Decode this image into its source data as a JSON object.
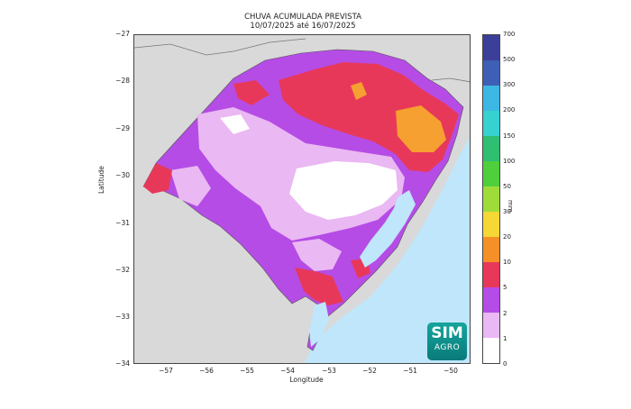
{
  "title": {
    "line1": "CHUVA ACUMULADA PREVISTA",
    "line2": "10/07/2025 até 16/07/2025"
  },
  "axes": {
    "x_label": "Longitude",
    "y_label": "Latitude",
    "x_ticks": [
      "−57",
      "−56",
      "−55",
      "−54",
      "−53",
      "−52",
      "−51",
      "−50"
    ],
    "y_ticks": [
      "−27",
      "−28",
      "−29",
      "−30",
      "−31",
      "−32",
      "−33",
      "−34"
    ]
  },
  "colorbar": {
    "unit": "mm",
    "ticks": [
      "700",
      "500",
      "300",
      "200",
      "150",
      "100",
      "50",
      "30",
      "20",
      "10",
      "5",
      "2",
      "1",
      "0"
    ],
    "colors_top_to_bottom": [
      "#3b3f99",
      "#3f5fb6",
      "#3db7e3",
      "#36d1d1",
      "#2fbf72",
      "#4fcf3c",
      "#9fdc3a",
      "#f5d735",
      "#f58f28",
      "#e8385a",
      "#b44de8",
      "#eab8f2",
      "#ffffff"
    ]
  },
  "map_colors": {
    "background": "#d9d9d9",
    "ocean": "#bfe6fb",
    "lagoon": "#bfe6fb",
    "state_base": "#b54ce6",
    "light": "#eab8f2",
    "white": "#ffffff",
    "red": "#e8385a",
    "orange": "#f5a030"
  },
  "logo": {
    "line1": "SIM",
    "line2": "AGRO"
  }
}
